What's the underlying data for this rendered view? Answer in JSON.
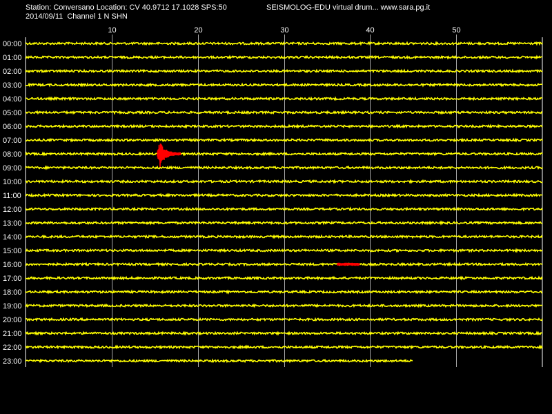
{
  "header": {
    "station_line": "Station: Conversano Location: CV 40.9712 17.1028 SPS:50",
    "date_line": "2014/09/11  Channel 1 N SHN",
    "title": "SEISMOLOG-EDU virtual drum... www.sara.pg.it"
  },
  "colors": {
    "background": "#000000",
    "trace": "#ffff00",
    "event": "#ff0000",
    "grid": "#ffffff"
  },
  "chart_data": {
    "type": "line",
    "title": "SEISMOLOG-EDU virtual drum... www.sara.pg.it",
    "x_ticks": [
      "10",
      "20",
      "30",
      "40",
      "50"
    ],
    "x_range": [
      0,
      60
    ],
    "y_labels": [
      "00:00",
      "01:00",
      "02:00",
      "03:00",
      "04:00",
      "05:00",
      "06:00",
      "07:00",
      "08:00",
      "09:00",
      "10:00",
      "11:00",
      "12:00",
      "13:00",
      "14:00",
      "15:00",
      "16:00",
      "17:00",
      "18:00",
      "19:00",
      "20:00",
      "21:00",
      "22:00",
      "23:00"
    ],
    "grid": true,
    "last_row_end_minute": 45,
    "events": [
      {
        "row_label": "08:00",
        "start_minute": 15.3,
        "end_minute": 18.0,
        "peak_minute": 15.6,
        "color": "#ff0000"
      },
      {
        "row_label": "16:00",
        "start_minute": 36.2,
        "end_minute": 38.8,
        "color": "#ff0000"
      }
    ]
  }
}
